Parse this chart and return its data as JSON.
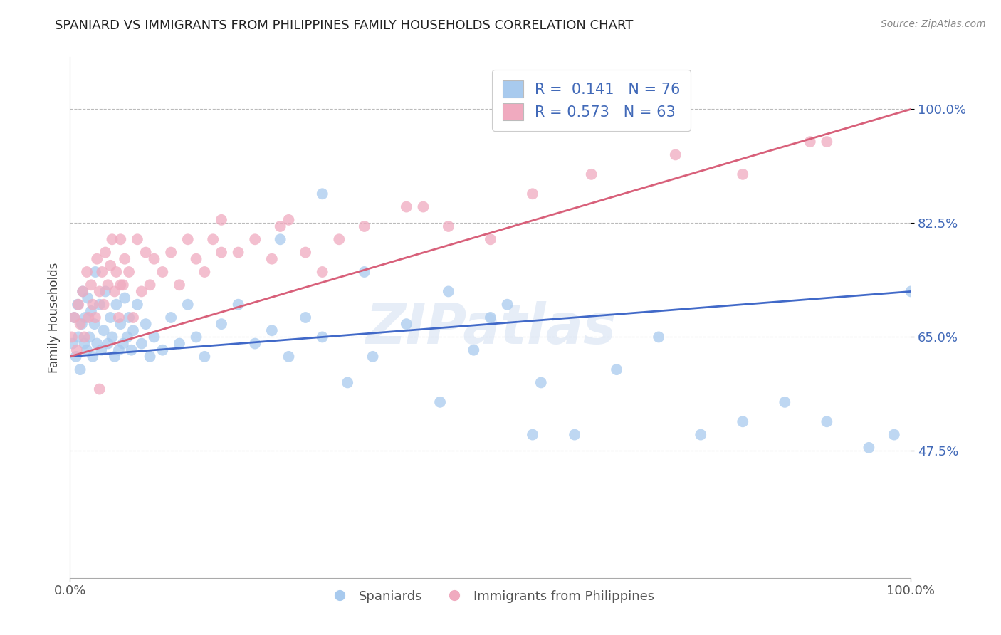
{
  "title": "SPANIARD VS IMMIGRANTS FROM PHILIPPINES FAMILY HOUSEHOLDS CORRELATION CHART",
  "source": "Source: ZipAtlas.com",
  "ylabel": "Family Households",
  "xlabel": "",
  "xlim": [
    0,
    100
  ],
  "ylim": [
    28,
    108
  ],
  "ytick_vals": [
    47.5,
    65.0,
    82.5,
    100.0
  ],
  "ytick_labels": [
    "47.5%",
    "65.0%",
    "82.5%",
    "100.0%"
  ],
  "xtick_vals": [
    0,
    100
  ],
  "xtick_labels": [
    "0.0%",
    "100.0%"
  ],
  "blue_R": 0.141,
  "blue_N": 76,
  "pink_R": 0.573,
  "pink_N": 63,
  "blue_color": "#A8CAEE",
  "pink_color": "#F0AABF",
  "blue_line_color": "#4169C8",
  "pink_line_color": "#D8607A",
  "legend_label_blue": "Spaniards",
  "legend_label_pink": "Immigrants from Philippines",
  "watermark": "ZIPatlas",
  "blue_line_x0": 0,
  "blue_line_y0": 62.0,
  "blue_line_x1": 100,
  "blue_line_y1": 72.0,
  "pink_line_x0": 0,
  "pink_line_y0": 62.0,
  "pink_line_x1": 100,
  "pink_line_y1": 100.0,
  "blue_x": [
    0.3,
    0.5,
    0.7,
    0.9,
    1.0,
    1.2,
    1.4,
    1.5,
    1.7,
    1.8,
    2.0,
    2.1,
    2.3,
    2.5,
    2.7,
    2.9,
    3.0,
    3.2,
    3.5,
    3.7,
    4.0,
    4.2,
    4.5,
    4.8,
    5.0,
    5.3,
    5.5,
    5.8,
    6.0,
    6.3,
    6.5,
    6.8,
    7.0,
    7.3,
    7.5,
    8.0,
    8.5,
    9.0,
    9.5,
    10.0,
    11.0,
    12.0,
    13.0,
    14.0,
    15.0,
    16.0,
    18.0,
    20.0,
    22.0,
    24.0,
    26.0,
    28.0,
    30.0,
    33.0,
    36.0,
    40.0,
    44.0,
    48.0,
    52.0,
    56.0,
    60.0,
    65.0,
    70.0,
    75.0,
    80.0,
    85.0,
    90.0,
    95.0,
    50.0,
    55.0,
    45.0,
    25.0,
    30.0,
    35.0,
    100.0,
    98.0
  ],
  "blue_y": [
    64,
    68,
    62,
    70,
    65,
    60,
    67,
    72,
    64,
    68,
    63,
    71,
    65,
    69,
    62,
    67,
    75,
    64,
    70,
    63,
    66,
    72,
    64,
    68,
    65,
    62,
    70,
    63,
    67,
    64,
    71,
    65,
    68,
    63,
    66,
    70,
    64,
    67,
    62,
    65,
    63,
    68,
    64,
    70,
    65,
    62,
    67,
    70,
    64,
    66,
    62,
    68,
    65,
    58,
    62,
    67,
    55,
    63,
    70,
    58,
    50,
    60,
    65,
    50,
    52,
    55,
    52,
    48,
    68,
    50,
    72,
    80,
    87,
    75,
    72,
    50
  ],
  "pink_x": [
    0.2,
    0.5,
    0.8,
    1.0,
    1.2,
    1.5,
    1.7,
    2.0,
    2.2,
    2.5,
    2.7,
    3.0,
    3.2,
    3.5,
    3.8,
    4.0,
    4.2,
    4.5,
    4.8,
    5.0,
    5.3,
    5.5,
    5.8,
    6.0,
    6.3,
    6.5,
    7.0,
    7.5,
    8.0,
    8.5,
    9.0,
    9.5,
    10.0,
    11.0,
    12.0,
    13.0,
    14.0,
    15.0,
    16.0,
    17.0,
    18.0,
    20.0,
    22.0,
    24.0,
    26.0,
    28.0,
    30.0,
    35.0,
    40.0,
    45.0,
    50.0,
    55.0,
    62.0,
    72.0,
    80.0,
    88.0,
    90.0,
    42.0,
    32.0,
    25.0,
    18.0,
    6.0,
    3.5
  ],
  "pink_y": [
    65,
    68,
    63,
    70,
    67,
    72,
    65,
    75,
    68,
    73,
    70,
    68,
    77,
    72,
    75,
    70,
    78,
    73,
    76,
    80,
    72,
    75,
    68,
    80,
    73,
    77,
    75,
    68,
    80,
    72,
    78,
    73,
    77,
    75,
    78,
    73,
    80,
    77,
    75,
    80,
    83,
    78,
    80,
    77,
    83,
    78,
    75,
    82,
    85,
    82,
    80,
    87,
    90,
    93,
    90,
    95,
    95,
    85,
    80,
    82,
    78,
    73,
    57
  ]
}
